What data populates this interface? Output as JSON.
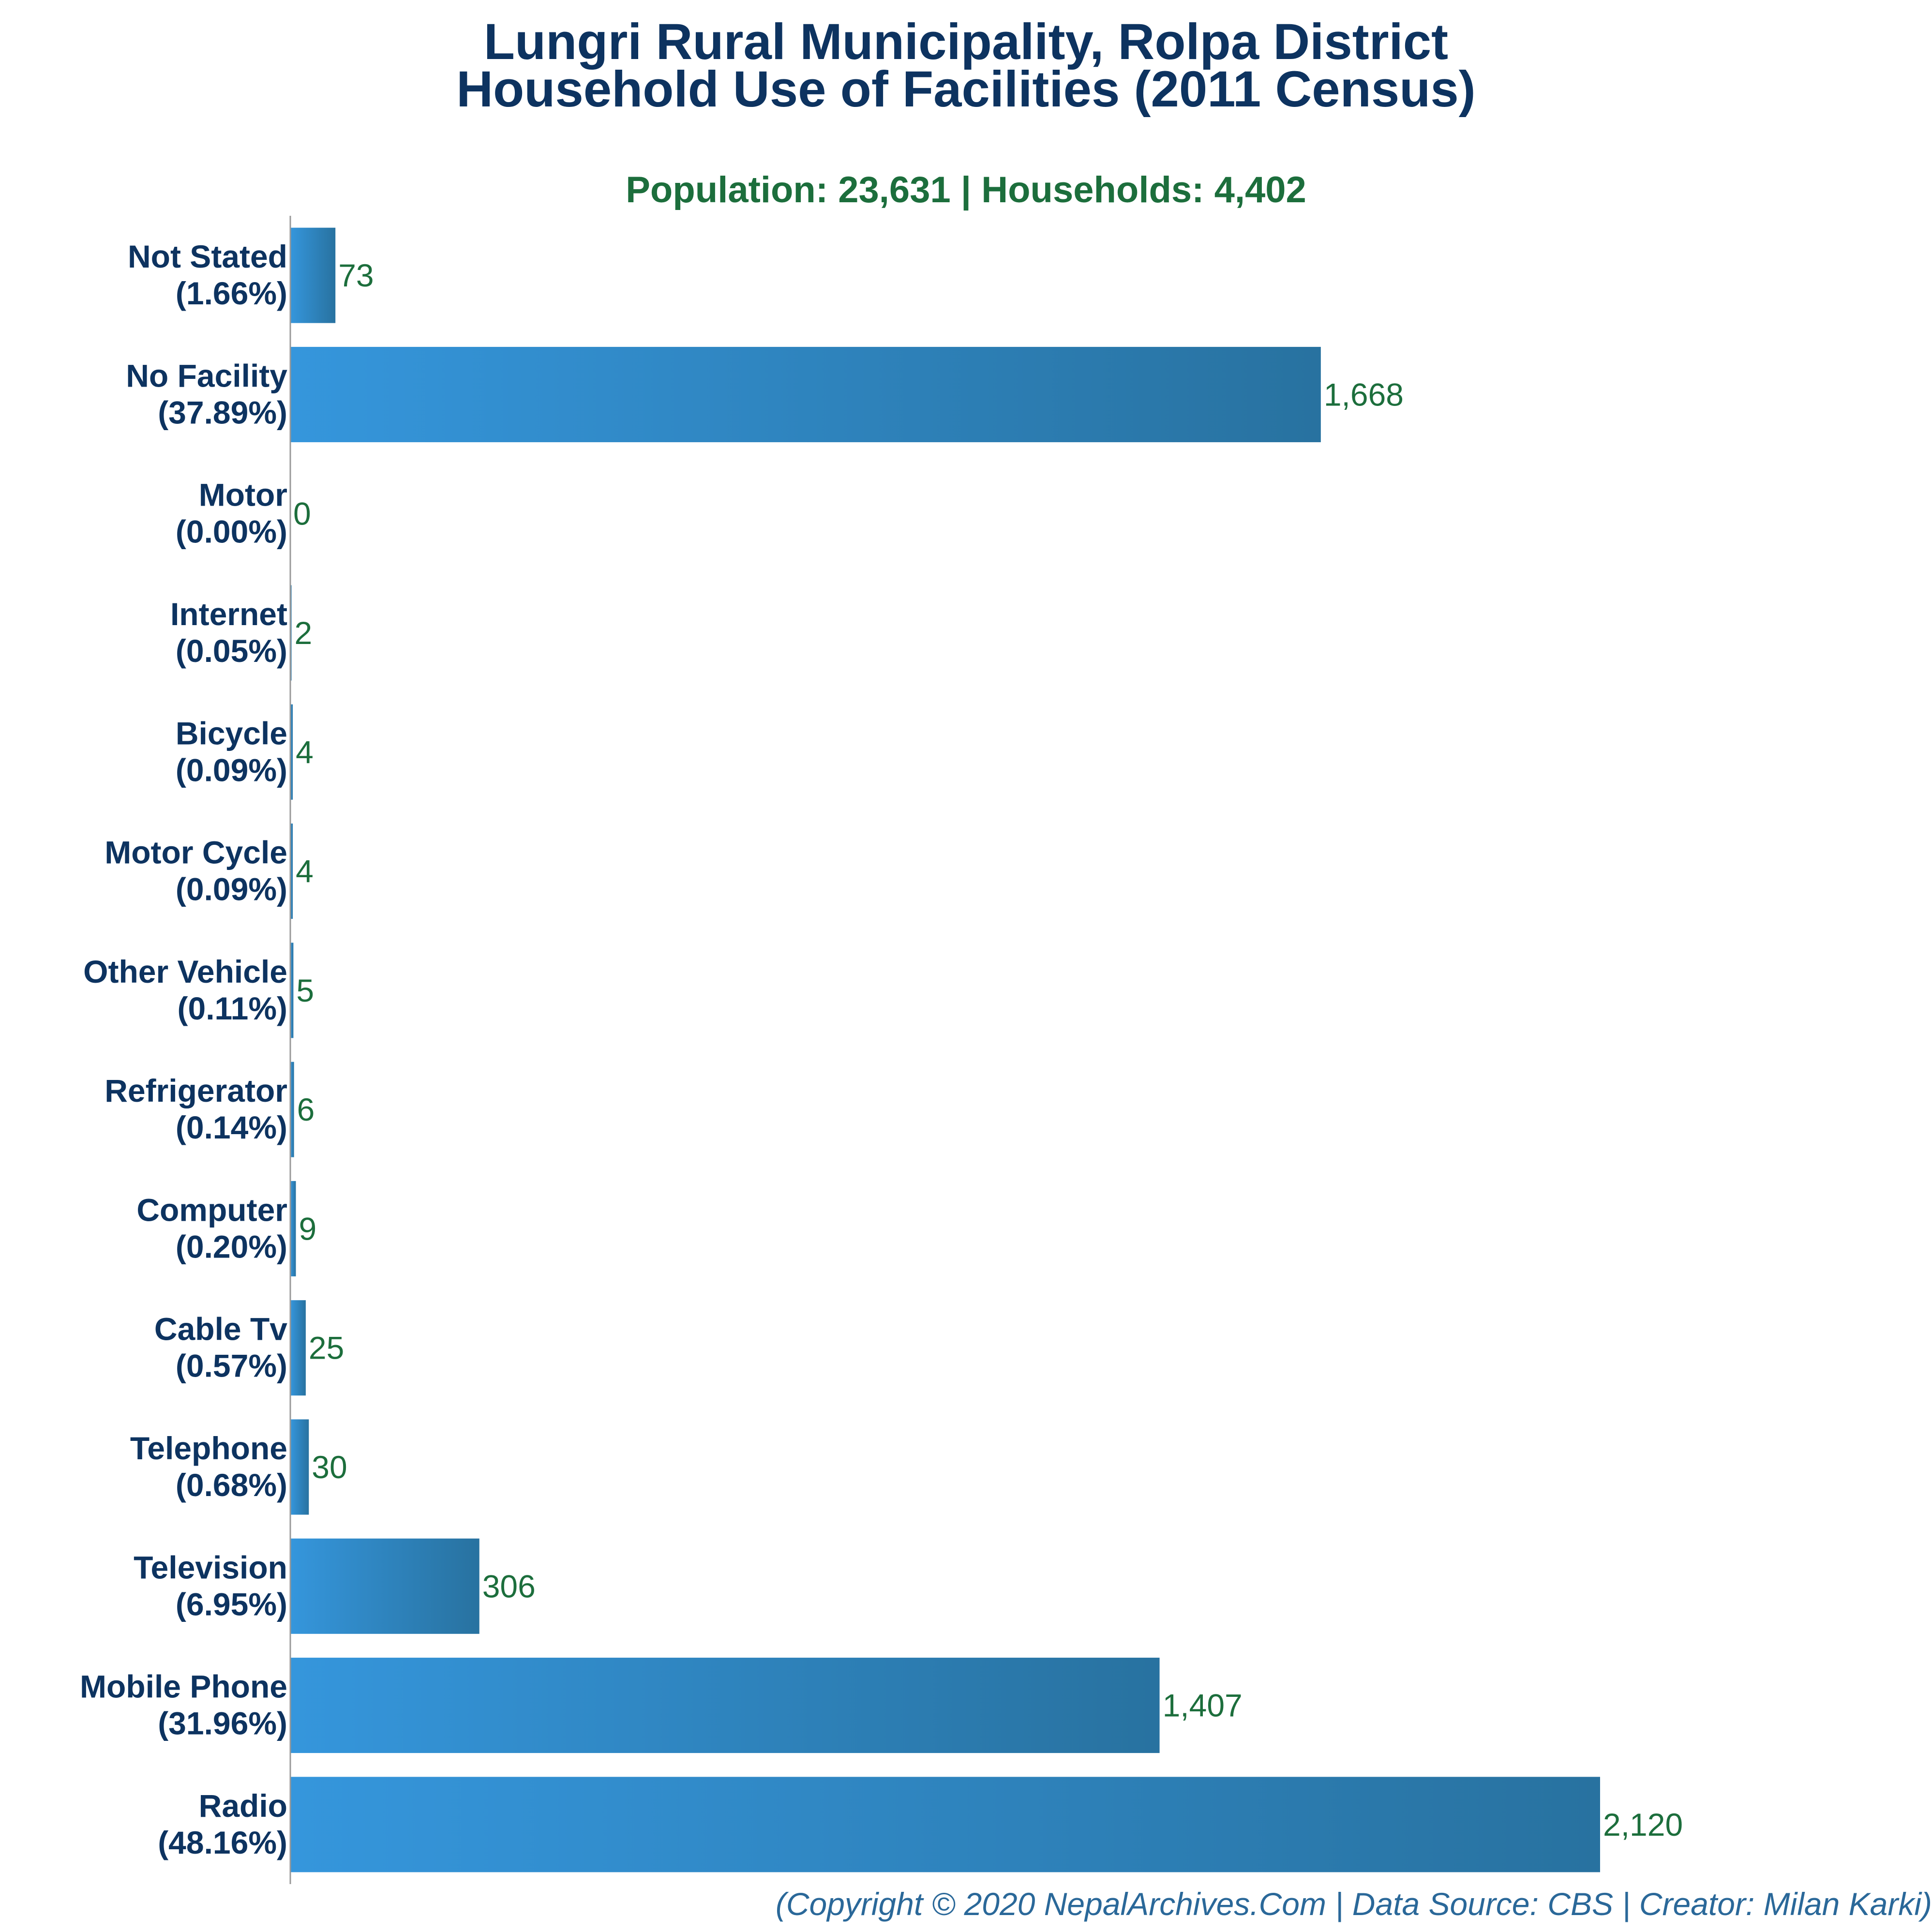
{
  "chart_data": {
    "type": "bar",
    "orientation": "horizontal",
    "title_line1": "Lungri Rural Municipality, Rolpa District",
    "title_line2": "Household Use of Facilities (2011 Census)",
    "subtitle": "Population: 23,631 | Households: 4,402",
    "credit": "(Copyright © 2020 NepalArchives.Com | Data Source: CBS | Creator: Milan Karki)",
    "categories": [
      "Not Stated",
      "No Facility",
      "Motor",
      "Internet",
      "Bicycle",
      "Motor Cycle",
      "Other Vehicle",
      "Refrigerator",
      "Computer",
      "Cable Tv",
      "Telephone",
      "Television",
      "Mobile Phone",
      "Radio"
    ],
    "percent_labels": [
      "(1.66%)",
      "(37.89%)",
      "(0.00%)",
      "(0.05%)",
      "(0.09%)",
      "(0.09%)",
      "(0.11%)",
      "(0.14%)",
      "(0.20%)",
      "(0.57%)",
      "(0.68%)",
      "(6.95%)",
      "(31.96%)",
      "(48.16%)"
    ],
    "values": [
      73,
      1668,
      0,
      2,
      4,
      4,
      5,
      6,
      9,
      25,
      30,
      306,
      1407,
      2120
    ],
    "value_labels": [
      "73",
      "1,668",
      "0",
      "2",
      "4",
      "4",
      "5",
      "6",
      "9",
      "25",
      "30",
      "306",
      "1,407",
      "2,120"
    ],
    "xlim": [
      0,
      2120
    ],
    "grid": false,
    "legend": "none",
    "colors": {
      "bar_light": "#3596dc",
      "bar_dark": "#2872a0",
      "title": "#0d3360",
      "subtitle": "#1c6e3c",
      "value_label": "#1c6e3c",
      "credit": "#2a6899",
      "axis": "#999999"
    }
  }
}
